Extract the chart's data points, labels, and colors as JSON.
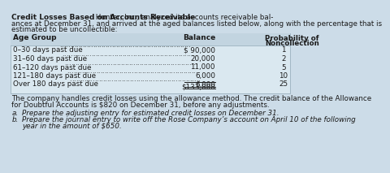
{
  "title_bold": "Credit Losses Based on Accounts Receivable",
  "title_rest_line1": " Hunter, Inc., analyzed its accounts receivable bal-",
  "title_line2": "ances at December 31, and arrived at the aged balances listed below, along with the percentage that is",
  "title_line3": "estimated to be uncollectible:",
  "col_header1": "Age Group",
  "col_header2": "Balance",
  "col_header3": "Probability of",
  "col_header3b": "Noncollection",
  "rows": [
    [
      "0–30 days past due",
      "$ 90,000",
      "1"
    ],
    [
      "31–60 days past due",
      "20,000",
      "2"
    ],
    [
      "61–120 days past due",
      "11,000",
      "5"
    ],
    [
      "121–180 days past due",
      "6,000",
      "10"
    ],
    [
      "Over 180 days past due",
      "6,000",
      "25"
    ]
  ],
  "total": "$133,000",
  "footer1": "The company handles credit losses using the allowance method. The credit balance of the Allowance",
  "footer2": "for Doubtful Accounts is $820 on December 31, before any adjustments.",
  "item_a_label": "a.",
  "item_a_text": "Prepare the adjusting entry for estimated credit losses on December 31.",
  "item_b_label": "b.",
  "item_b_text1": "Prepare the journal entry to write off the Rose Company’s account on April 10 of the following",
  "item_b_text2": "year in the amount of $650.",
  "bg_color": "#ccdce8",
  "table_bg": "#dae8f0",
  "header_row_bg": "#c2d4e0",
  "border_color": "#9ab0be",
  "text_color": "#1a1a1a",
  "fs": 6.3,
  "fs_bold": 6.5
}
